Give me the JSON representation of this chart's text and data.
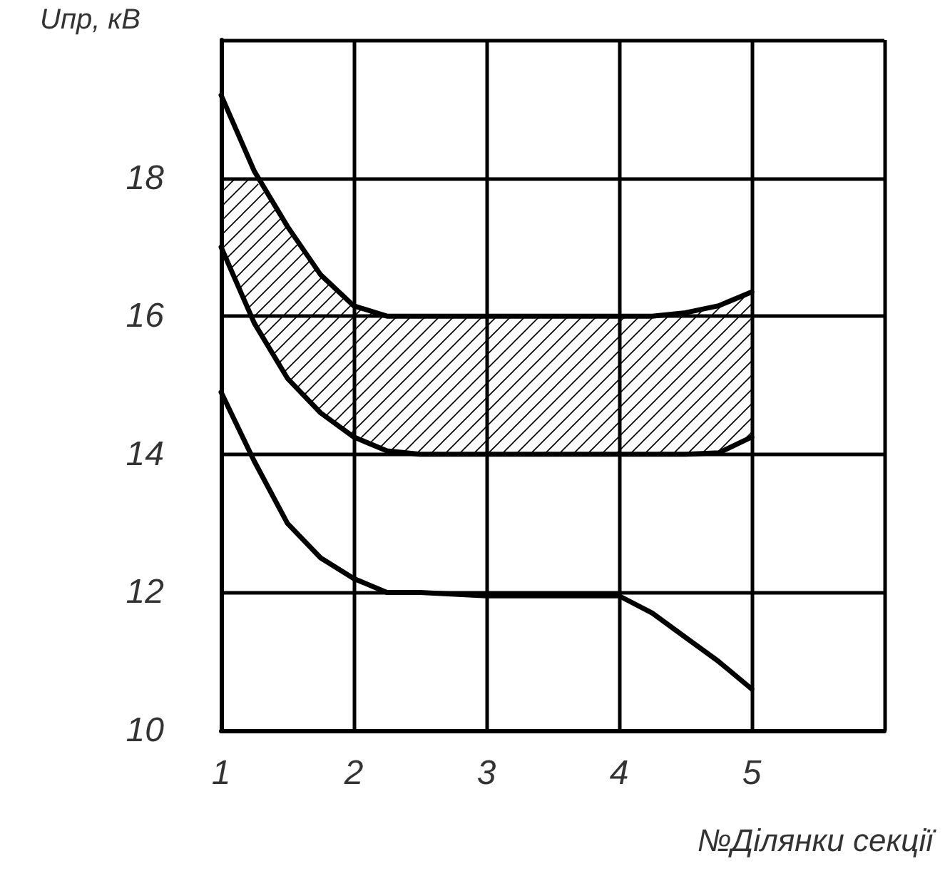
{
  "chart_data": {
    "type": "line",
    "ylabel": "Uпр, кВ",
    "xlabel": "№Ділянки секції",
    "x": [
      1,
      1.25,
      1.5,
      1.75,
      2,
      2.25,
      2.5,
      3,
      3.5,
      4,
      4.25,
      4.5,
      4.75,
      5
    ],
    "series": [
      {
        "color": "#000000",
        "values": [
          19.2,
          18.1,
          17.3,
          16.6,
          16.15,
          16.0,
          16.0,
          16.0,
          16.0,
          16.0,
          16.0,
          16.05,
          16.15,
          16.35
        ],
        "lower": [
          17.0,
          15.9,
          15.1,
          14.6,
          14.25,
          14.05,
          14.0,
          14.0,
          14.0,
          14.0,
          14.0,
          14.0,
          14.02,
          14.25
        ],
        "upper": [
          18,
          18,
          17.3,
          16.6,
          16.15,
          16.0,
          16.0,
          16.0,
          16.0,
          16.0,
          16.0,
          16.05,
          16.15,
          16.35
        ]
      },
      {
        "color": "#000000",
        "values": [
          17.0,
          15.9,
          15.1,
          14.6,
          14.25,
          14.05,
          14.0,
          14.0,
          14.0,
          14.0,
          14.0,
          14.0,
          14.02,
          14.25
        ]
      },
      {
        "color": "#000000",
        "values": [
          14.9,
          13.9,
          13.0,
          12.5,
          12.2,
          12.0,
          12.0,
          11.95,
          11.95,
          11.95,
          11.7,
          11.35,
          11.0,
          10.6
        ]
      }
    ],
    "xlim": [
      1,
      6
    ],
    "xticks": [
      1,
      2,
      3,
      4,
      5,
      {
        "value": 6,
        "label": null
      }
    ],
    "ylim": [
      10,
      20
    ],
    "yticks": [
      10,
      12,
      14,
      16,
      18,
      {
        "value": 20,
        "label": null
      }
    ],
    "grid": true,
    "marker": "none",
    "line_style": "solid"
  }
}
